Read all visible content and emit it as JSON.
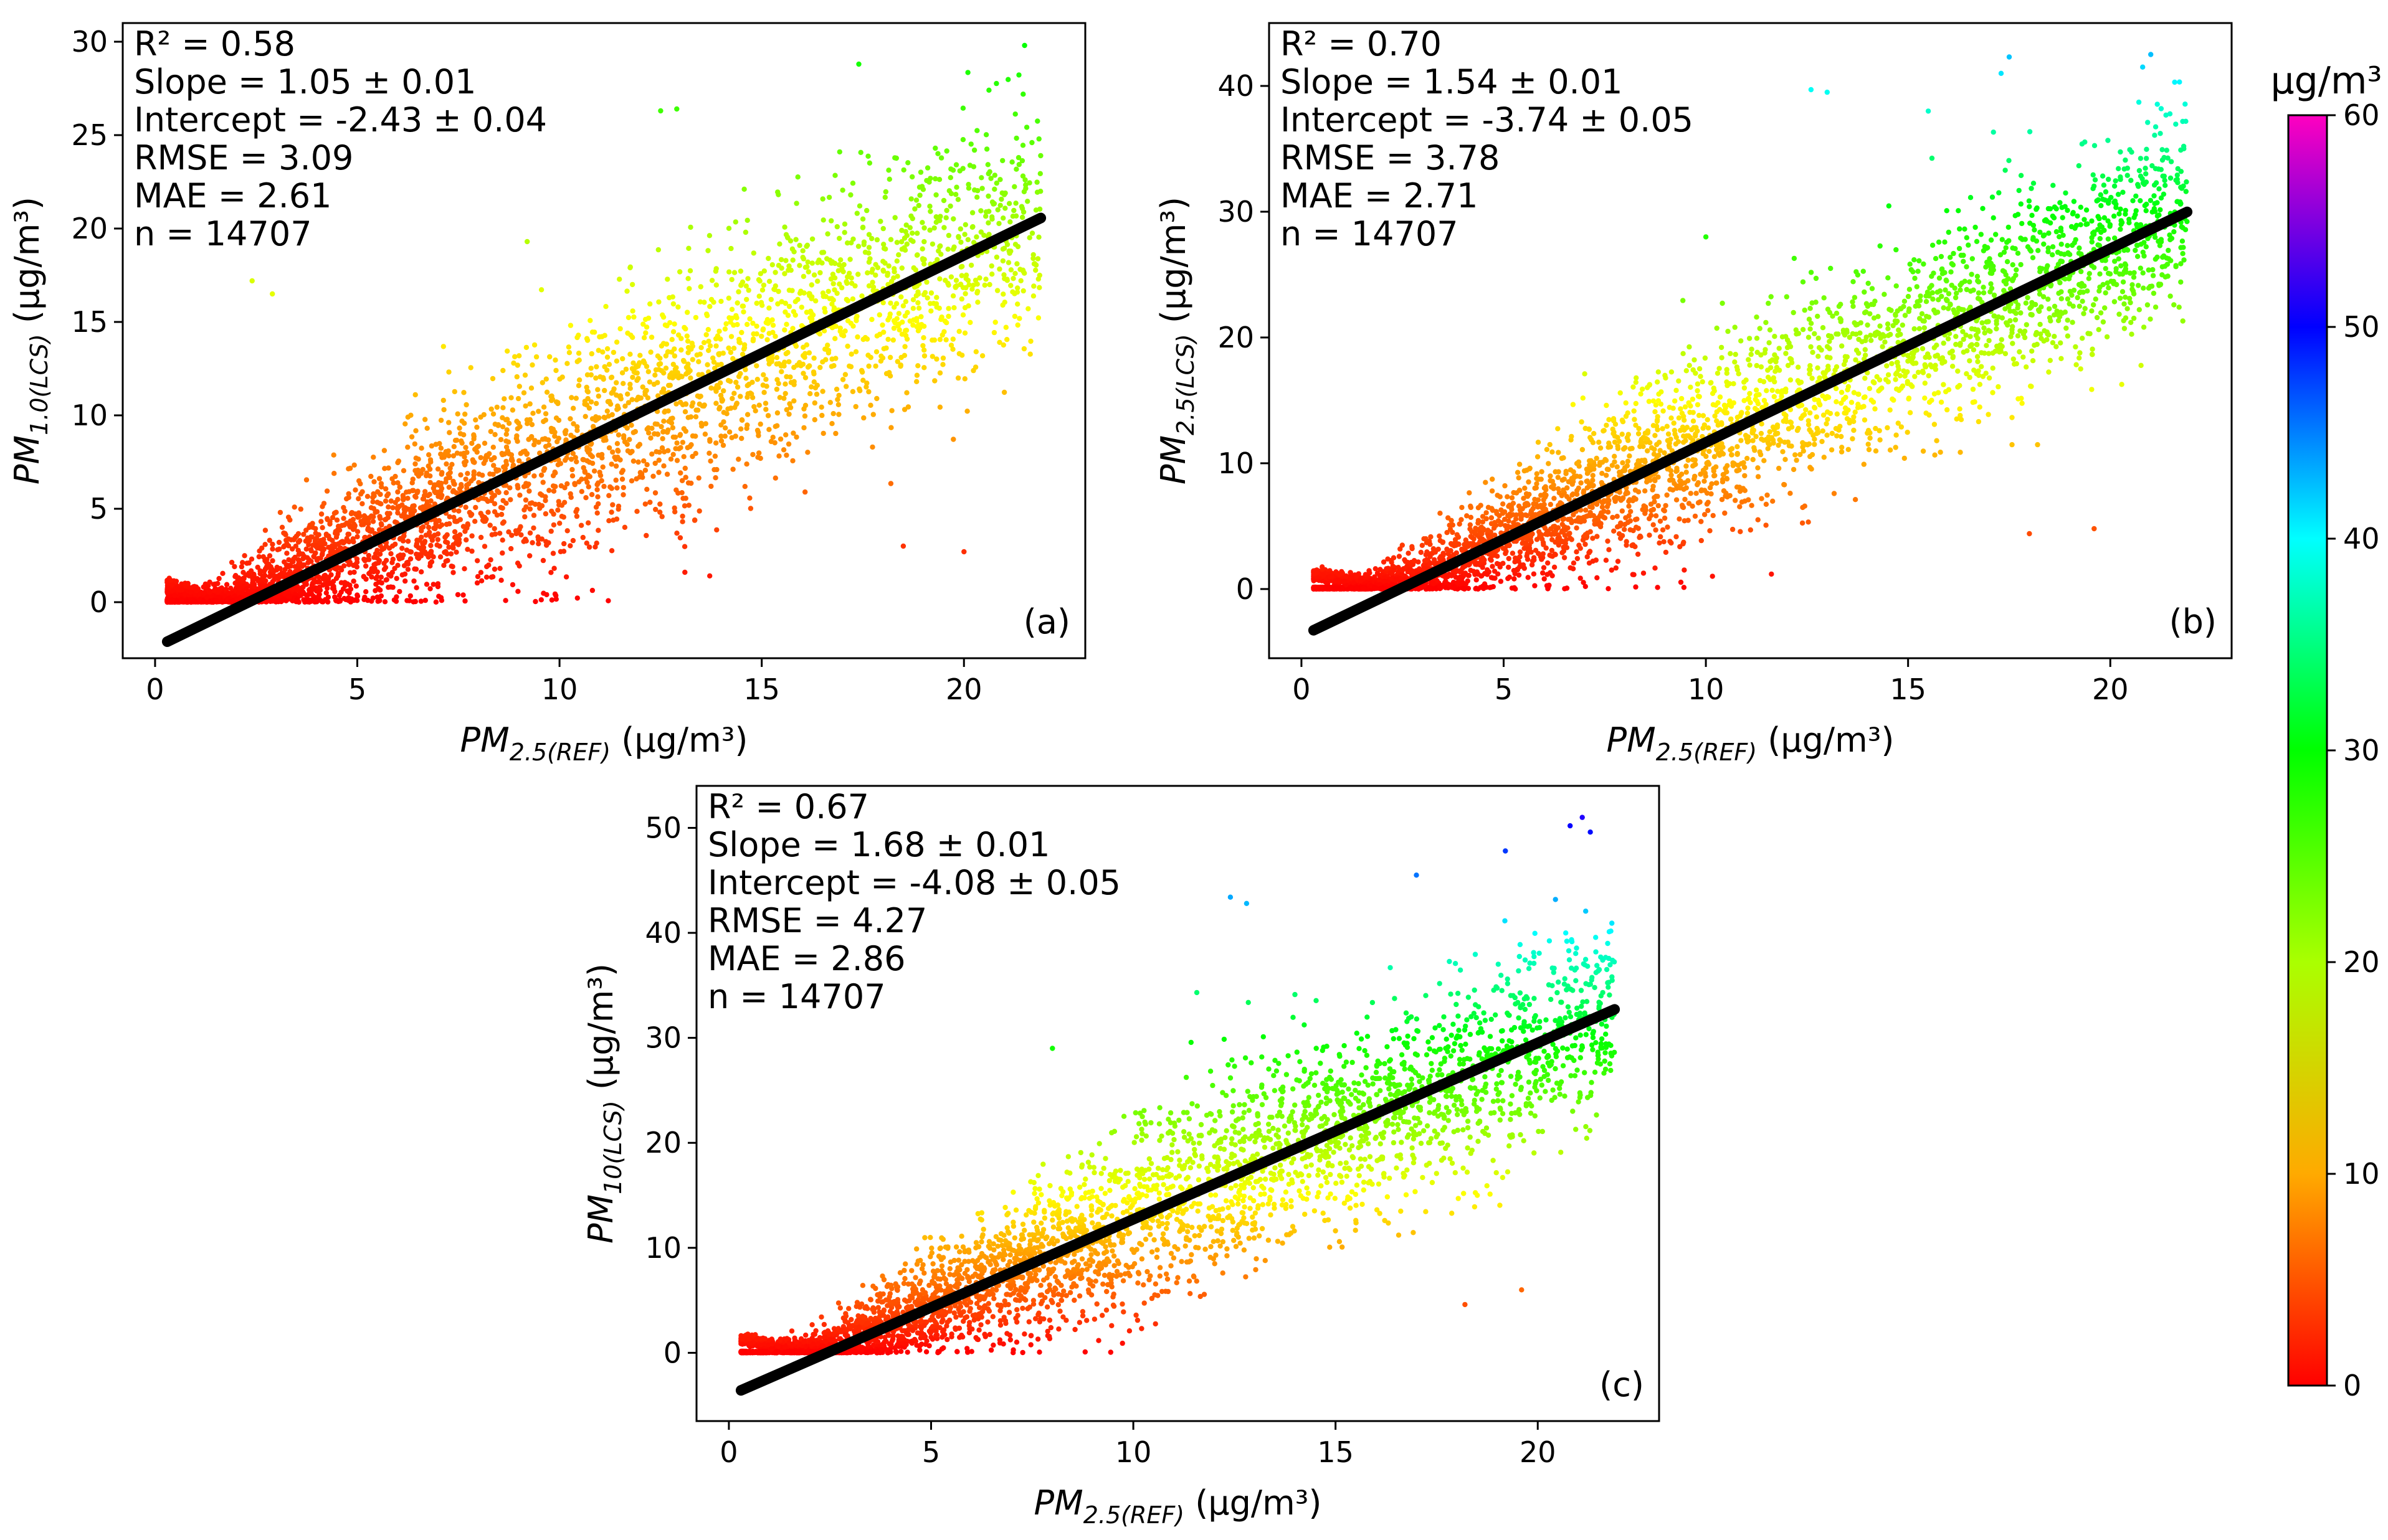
{
  "figure": {
    "colorbar": {
      "unit": "µg/m³",
      "min": 0,
      "max": 60,
      "ticks": [
        0,
        10,
        20,
        30,
        40,
        50,
        60
      ]
    },
    "panels_label": [
      "(a)",
      "(b)",
      "(c)"
    ]
  },
  "chart_data": [
    {
      "type": "scatter",
      "panel": "(a)",
      "xlabel_main": "PM",
      "xlabel_sub": "2.5(REF)",
      "xlabel_unit": " (µg/m³)",
      "ylabel_main": "PM",
      "ylabel_sub": "1.0(LCS)",
      "ylabel_unit": " (µg/m³)",
      "xlim": [
        -0.8,
        23.0
      ],
      "ylim": [
        -3.0,
        31.0
      ],
      "xticks": [
        0,
        5,
        10,
        15,
        20
      ],
      "yticks": [
        0,
        5,
        10,
        15,
        20,
        25,
        30
      ],
      "stats": [
        "R² = 0.58",
        "Slope = 1.05 ± 0.01",
        "Intercept = -2.43 ± 0.04",
        "RMSE = 3.09",
        "MAE = 2.61",
        "n = 14707"
      ],
      "fit": {
        "slope": 1.05,
        "intercept": -2.43,
        "x_range": [
          0.3,
          21.9
        ]
      },
      "color_by": "y value (µg/m³)",
      "point_cloud": {
        "x_range": [
          0.3,
          21.9
        ],
        "y_range": [
          0,
          29.8
        ],
        "spread_sd": 2.9
      },
      "outliers": [
        [
          2.4,
          17.2
        ],
        [
          2.9,
          16.5
        ],
        [
          12.5,
          26.3
        ],
        [
          12.9,
          26.4
        ],
        [
          17.4,
          28.8
        ],
        [
          21.5,
          29.8
        ],
        [
          20.0,
          2.7
        ],
        [
          18.5,
          3.0
        ],
        [
          9.2,
          19.3
        ],
        [
          13.1,
          1.6
        ]
      ]
    },
    {
      "type": "scatter",
      "panel": "(b)",
      "xlabel_main": "PM",
      "xlabel_sub": "2.5(REF)",
      "xlabel_unit": " (µg/m³)",
      "ylabel_main": "PM",
      "ylabel_sub": "2.5(LCS)",
      "ylabel_unit": " (µg/m³)",
      "xlim": [
        -0.8,
        23.0
      ],
      "ylim": [
        -5.5,
        45.0
      ],
      "xticks": [
        0,
        5,
        10,
        15,
        20
      ],
      "yticks": [
        0,
        10,
        20,
        30,
        40
      ],
      "stats": [
        "R² = 0.70",
        "Slope = 1.54 ± 0.01",
        "Intercept = -3.74 ± 0.05",
        "RMSE = 3.78",
        "MAE = 2.71",
        "n = 14707"
      ],
      "fit": {
        "slope": 1.54,
        "intercept": -3.74,
        "x_range": [
          0.3,
          21.9
        ]
      },
      "color_by": "y value (µg/m³)",
      "point_cloud": {
        "x_range": [
          0.3,
          21.9
        ],
        "y_range": [
          0,
          42.5
        ],
        "spread_sd": 3.6
      },
      "outliers": [
        [
          12.6,
          39.7
        ],
        [
          13.0,
          39.5
        ],
        [
          17.5,
          42.3
        ],
        [
          21.0,
          42.5
        ],
        [
          20.8,
          41.5
        ],
        [
          17.3,
          41.0
        ],
        [
          19.6,
          4.8
        ],
        [
          18.0,
          4.4
        ],
        [
          10.0,
          28.0
        ],
        [
          15.5,
          38.0
        ]
      ]
    },
    {
      "type": "scatter",
      "panel": "(c)",
      "xlabel_main": "PM",
      "xlabel_sub": "2.5(REF)",
      "xlabel_unit": " (µg/m³)",
      "ylabel_main": "PM",
      "ylabel_sub": "10(LCS)",
      "ylabel_unit": " (µg/m³)",
      "xlim": [
        -0.8,
        23.0
      ],
      "ylim": [
        -6.5,
        54.0
      ],
      "xticks": [
        0,
        5,
        10,
        15,
        20
      ],
      "yticks": [
        0,
        10,
        20,
        30,
        40,
        50
      ],
      "stats": [
        "R² = 0.67",
        "Slope = 1.68 ± 0.01",
        "Intercept = -4.08 ± 0.05",
        "RMSE = 4.27",
        "MAE = 2.86",
        "n = 14707"
      ],
      "fit": {
        "slope": 1.68,
        "intercept": -4.08,
        "x_range": [
          0.3,
          21.9
        ]
      },
      "color_by": "y value (µg/m³)",
      "point_cloud": {
        "x_range": [
          0.3,
          21.9
        ],
        "y_range": [
          0,
          51.0
        ],
        "spread_sd": 4.1
      },
      "outliers": [
        [
          12.4,
          43.4
        ],
        [
          12.8,
          42.8
        ],
        [
          21.1,
          51.0
        ],
        [
          20.8,
          50.2
        ],
        [
          21.3,
          49.6
        ],
        [
          19.2,
          47.8
        ],
        [
          17.0,
          45.5
        ],
        [
          18.2,
          4.6
        ],
        [
          19.6,
          6.0
        ],
        [
          8.0,
          29.0
        ]
      ]
    }
  ]
}
